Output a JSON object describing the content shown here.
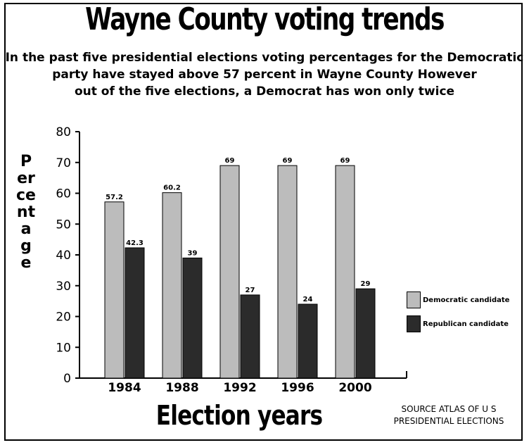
{
  "title": "Wayne County voting trends",
  "subtitle_lines": [
    "In the past five presidential elections  voting percentages for the Democratic",
    "party have stayed above 57 percent in Wayne County  However",
    "out of the five elections, a Democrat has won only twice"
  ],
  "source_lines": [
    "SOURCE  ATLAS OF U S",
    "PRESIDENTIAL ELECTIONS"
  ],
  "colors": {
    "democratic": "#bcbcbc",
    "republican": "#2b2b2b"
  },
  "chart_data": {
    "type": "bar",
    "title": "Wayne County voting trends",
    "xlabel": "Election years",
    "ylabel": "Percentage",
    "categories": [
      "1984",
      "1988",
      "1992",
      "1996",
      "2000"
    ],
    "series": [
      {
        "name": "Democratic candidate",
        "values": [
          57.2,
          60.2,
          69,
          69,
          69
        ],
        "labels": [
          "57.2",
          "60.2",
          "69",
          "69",
          "69"
        ]
      },
      {
        "name": "Republican candidate",
        "values": [
          42.3,
          39,
          27,
          24,
          29
        ],
        "labels": [
          "42.3",
          "39",
          "27",
          "24",
          "29"
        ]
      }
    ],
    "ylim": [
      0,
      80
    ],
    "yticks": [
      0,
      10,
      20,
      30,
      40,
      50,
      60,
      70,
      80
    ],
    "grid": false,
    "legend": "right"
  }
}
